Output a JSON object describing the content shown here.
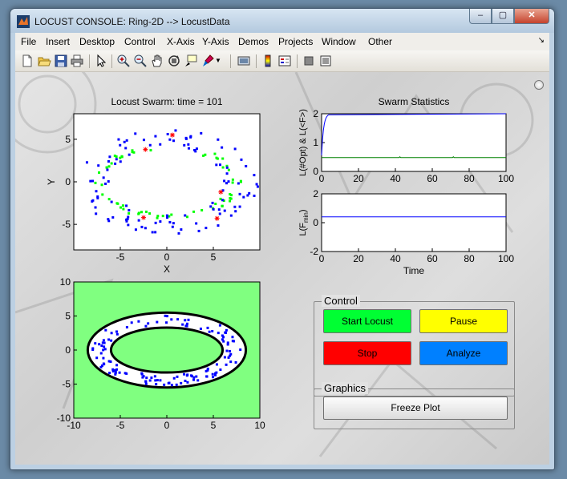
{
  "window": {
    "title": "LOCUST CONSOLE: Ring-2D --> LocustData",
    "caption_min": "–",
    "caption_max": "▢",
    "caption_close": "✕"
  },
  "menu": [
    "File",
    "Insert",
    "Desktop",
    "Control",
    "X-Axis",
    "Y-Axis",
    "Demos",
    "Projects",
    "Window",
    "Other"
  ],
  "toolbar_icons": [
    "new-file-icon",
    "open-folder-icon",
    "save-icon",
    "print-icon",
    "pointer-icon",
    "zoom-in-icon",
    "zoom-out-icon",
    "pan-hand-icon",
    "rotate-icon",
    "data-cursor-icon",
    "brush-icon",
    "link-icon",
    "colorbar-icon",
    "legend-icon",
    "hide-tools-icon",
    "show-tools-icon"
  ],
  "plots": {
    "swarm": {
      "title": "Locust Swarm: time = 101",
      "xlabel": "X",
      "ylabel": "Y",
      "xticks": [
        "-5",
        "0",
        "5"
      ],
      "yticks": [
        "5",
        "0",
        "-5"
      ]
    },
    "stats_top": {
      "title": "Swarm Statistics",
      "ylabel": "L(#Opt) & L(<F>)",
      "xticks": [
        "0",
        "20",
        "40",
        "60",
        "80",
        "100"
      ],
      "yticks": [
        "2",
        "1",
        "0"
      ]
    },
    "stats_bottom": {
      "ylabel_main": "L(F",
      "ylabel_sub": "min",
      "ylabel_end": ")",
      "xlabel": "Time",
      "xticks": [
        "0",
        "20",
        "40",
        "60",
        "80",
        "100"
      ],
      "yticks": [
        "2",
        "0",
        "-2"
      ]
    },
    "ring": {
      "xticks": [
        "-10",
        "-5",
        "0",
        "5",
        "10"
      ],
      "yticks": [
        "10",
        "5",
        "0",
        "-5",
        "-10"
      ]
    }
  },
  "control": {
    "label": "Control",
    "start": "Start Locust",
    "pause": "Pause",
    "stop": "Stop",
    "analyze": "Analyze"
  },
  "graphics": {
    "label": "Graphics",
    "freeze": "Freeze Plot"
  },
  "colors": {
    "start": "#00ff33",
    "pause": "#ffff00",
    "stop": "#ff0000",
    "analyze": "#0080ff",
    "ring_bg": "#80ff80",
    "blue_points": "#0000ff",
    "green_points": "#00ff00",
    "best_points": "#ff0000"
  }
}
